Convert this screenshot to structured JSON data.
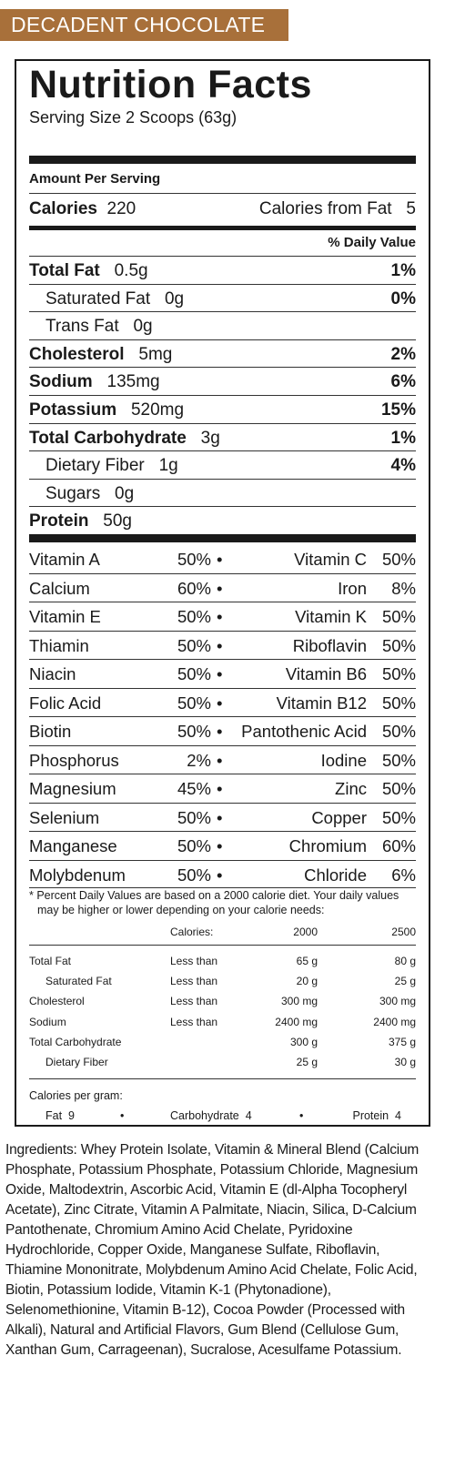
{
  "flavor_label": "DECADENT CHOCOLATE",
  "title": "Nutrition Facts",
  "serving_size": "Serving Size 2 Scoops (63g)",
  "amount_per_serving": "Amount Per Serving",
  "calories_label": "Calories",
  "calories_value": "220",
  "calories_from_fat_label": "Calories from Fat",
  "calories_from_fat_value": "5",
  "daily_value_header": "% Daily Value",
  "nutrients": [
    {
      "label": "Total Fat",
      "amount": "0.5g",
      "dv": "1%"
    },
    {
      "label": "Saturated Fat",
      "amount": "0g",
      "dv": "0%"
    },
    {
      "label": "Trans Fat",
      "amount": "0g",
      "dv": ""
    },
    {
      "label": "Cholesterol",
      "amount": "5mg",
      "dv": "2%"
    },
    {
      "label": "Sodium",
      "amount": "135mg",
      "dv": "6%"
    },
    {
      "label": "Potassium",
      "amount": "520mg",
      "dv": "15%"
    },
    {
      "label": "Total Carbohydrate",
      "amount": "3g",
      "dv": "1%"
    },
    {
      "label": "Dietary Fiber",
      "amount": "1g",
      "dv": "4%"
    },
    {
      "label": "Sugars",
      "amount": "0g",
      "dv": ""
    },
    {
      "label": "Protein",
      "amount": "50g",
      "dv": ""
    }
  ],
  "vitamins": [
    {
      "n1": "Vitamin A",
      "p1": "50%",
      "n2": "Vitamin C",
      "p2": "50%"
    },
    {
      "n1": "Calcium",
      "p1": "60%",
      "n2": "Iron",
      "p2": "8%"
    },
    {
      "n1": "Vitamin E",
      "p1": "50%",
      "n2": "Vitamin K",
      "p2": "50%"
    },
    {
      "n1": "Thiamin",
      "p1": "50%",
      "n2": "Riboflavin",
      "p2": "50%"
    },
    {
      "n1": "Niacin",
      "p1": "50%",
      "n2": "Vitamin B6",
      "p2": "50%"
    },
    {
      "n1": "Folic Acid",
      "p1": "50%",
      "n2": "Vitamin B12",
      "p2": "50%"
    },
    {
      "n1": "Biotin",
      "p1": "50%",
      "n2": "Pantothenic Acid",
      "p2": "50%"
    },
    {
      "n1": "Phosphorus",
      "p1": "2%",
      "n2": "Iodine",
      "p2": "50%"
    },
    {
      "n1": "Magnesium",
      "p1": "45%",
      "n2": "Zinc",
      "p2": "50%"
    },
    {
      "n1": "Selenium",
      "p1": "50%",
      "n2": "Copper",
      "p2": "50%"
    },
    {
      "n1": "Manganese",
      "p1": "50%",
      "n2": "Chromium",
      "p2": "60%"
    },
    {
      "n1": "Molybdenum",
      "p1": "50%",
      "n2": "Chloride",
      "p2": "6%"
    }
  ],
  "bullet": "•",
  "footnote_1": "* Percent Daily Values are based on a 2000 calorie diet. Your daily values",
  "footnote_2": "may be higher or lower depending on your calorie needs:",
  "dv_table": {
    "header": [
      "",
      "Calories:",
      "2000",
      "2500"
    ],
    "rows": [
      [
        "Total Fat",
        "Less than",
        "65 g",
        "80 g"
      ],
      [
        "Saturated Fat",
        "Less than",
        "20 g",
        "25 g"
      ],
      [
        "Cholesterol",
        "Less than",
        "300 mg",
        "300 mg"
      ],
      [
        "Sodium",
        "Less than",
        "2400 mg",
        "2400 mg"
      ],
      [
        "Total Carbohydrate",
        "",
        "300 g",
        "375 g"
      ],
      [
        "Dietary Fiber",
        "",
        "25 g",
        "30 g"
      ]
    ]
  },
  "calories_per_gram_label": "Calories per gram:",
  "calories_per_gram": [
    {
      "label": "Fat",
      "value": "9"
    },
    {
      "label": "Carbohydrate",
      "value": "4"
    },
    {
      "label": "Protein",
      "value": "4"
    }
  ],
  "ingredients_label": "Ingredients:",
  "ingredients_text": "Whey Protein Isolate, Vitamin & Mineral Blend (Calcium Phosphate, Potassium Phosphate, Potassium Chloride, Magnesium Oxide, Maltodextrin, Ascorbic Acid, Vitamin E (dl-Alpha Tocopheryl Acetate), Zinc Citrate, Vitamin A Palmitate, Niacin, Silica, D-Calcium Pantothenate, Chromium Amino Acid Chelate, Pyridoxine Hydrochloride, Copper Oxide, Manganese Sulfate, Riboflavin, Thiamine Mononitrate, Molybdenum Amino Acid Chelate, Folic Acid, Biotin, Potassium Iodide, Vitamin K-1 (Phytonadione), Selenomethionine, Vitamin B-12), Cocoa Powder (Processed with Alkali), Natural and Artificial Flavors, Gum Blend (Cellulose Gum, Xanthan Gum, Carrageenan), Sucralose, Acesulfame Potassium."
}
